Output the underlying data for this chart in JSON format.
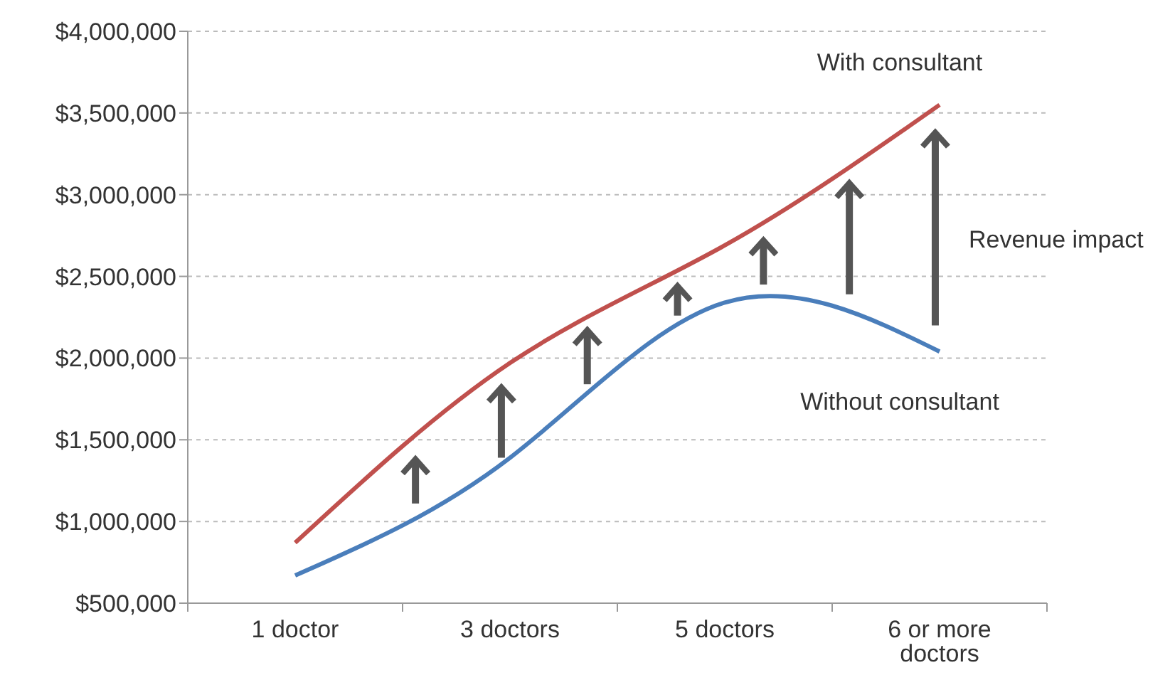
{
  "chart_data": {
    "type": "line",
    "categories": [
      "1 doctor",
      "3 doctors",
      "5 doctors",
      "6 or more doctors"
    ],
    "series": [
      {
        "name": "With consultant",
        "color": "#c0504d",
        "values": [
          870000,
          1970000,
          2690000,
          3550000
        ]
      },
      {
        "name": "Without consultant",
        "color": "#4a7ebb",
        "values": [
          670000,
          1390000,
          2340000,
          2040000
        ]
      }
    ],
    "ylim": [
      500000,
      4000000
    ],
    "yticks": [
      {
        "value": 500000,
        "label": "$500,000"
      },
      {
        "value": 1000000,
        "label": "$1,000,000"
      },
      {
        "value": 1500000,
        "label": "$1,500,000"
      },
      {
        "value": 2000000,
        "label": "$2,000,000"
      },
      {
        "value": 2500000,
        "label": "$2,500,000"
      },
      {
        "value": 3000000,
        "label": "$3,000,000"
      },
      {
        "value": 3500000,
        "label": "$3,500,000"
      },
      {
        "value": 4000000,
        "label": "$4,000,000"
      }
    ],
    "grid": "y",
    "legend": false,
    "marker": "none",
    "line_style": "solid",
    "annotations": [
      "Revenue impact"
    ]
  }
}
